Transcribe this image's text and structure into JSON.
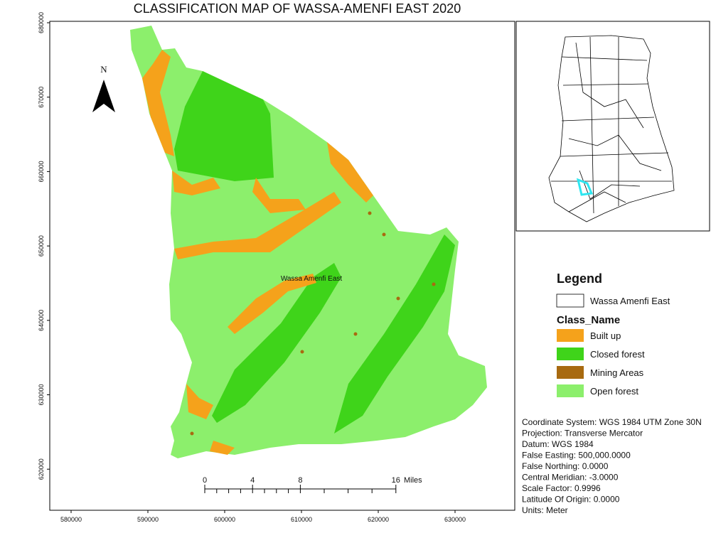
{
  "title": "CLASSIFICATION MAP OF WASSA-AMENFI EAST 2020",
  "north_arrow": "N",
  "map_label": "Wassa Amenfi East",
  "x_ticks": [
    580000,
    590000,
    600000,
    610000,
    620000,
    630000
  ],
  "y_ticks": [
    620000,
    630000,
    640000,
    650000,
    660000,
    670000,
    680000
  ],
  "scale_bar": {
    "labels": [
      0,
      4,
      8,
      16
    ],
    "unit": "Miles"
  },
  "legend": {
    "title": "Legend",
    "boundary": "Wassa Amenfi East",
    "class_title": "Class_Name",
    "classes": [
      {
        "name": "Built up",
        "color": "#f5a21b"
      },
      {
        "name": "Closed forest",
        "color": "#3fd41a"
      },
      {
        "name": "Mining Areas",
        "color": "#a86a10"
      },
      {
        "name": "Open forest",
        "color": "#8cef6c"
      }
    ]
  },
  "coordinate_info": [
    "Coordinate System: WGS 1984 UTM Zone 30N",
    "Projection: Transverse Mercator",
    "Datum: WGS 1984",
    "False Easting: 500,000.0000",
    "False Northing: 0.0000",
    "Central Meridian: -3.0000",
    "Scale Factor: 0.9996",
    "Latitude Of Origin: 0.0000",
    "Units: Meter"
  ]
}
